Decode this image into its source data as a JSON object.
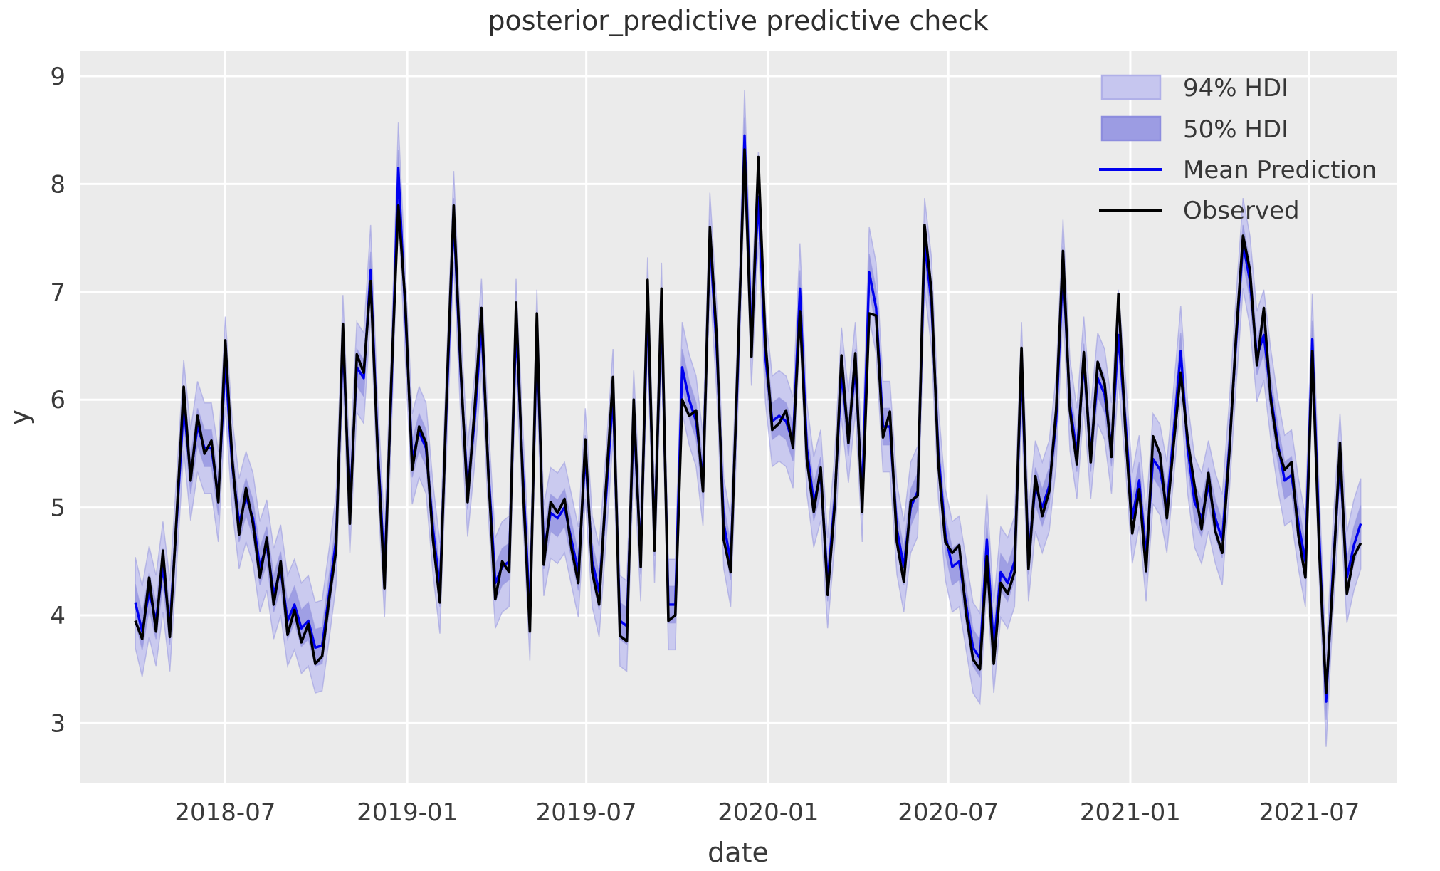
{
  "title": "posterior_predictive predictive check",
  "axes": {
    "xlabel": "date",
    "ylabel": "y",
    "yticks": [
      3,
      4,
      5,
      6,
      7,
      8,
      9
    ],
    "xticks": [
      "2018-07",
      "2019-01",
      "2019-07",
      "2020-01",
      "2020-07",
      "2021-01",
      "2021-07"
    ],
    "xtick_dates": [
      "2018-07-01",
      "2019-01-01",
      "2019-07-01",
      "2020-01-01",
      "2020-07-01",
      "2021-01-01",
      "2021-07-01"
    ]
  },
  "legend": {
    "items": [
      {
        "label": "94% HDI",
        "type": "patch",
        "fill": "#c6c6ef",
        "edge": "#adadе8"
      },
      {
        "label": "50% HDI",
        "type": "patch",
        "fill": "#9c9ce3",
        "edge": "#8a8adc"
      },
      {
        "label": "Mean Prediction",
        "type": "line",
        "color": "#0000ee"
      },
      {
        "label": "Observed",
        "type": "line",
        "color": "#000000"
      }
    ]
  },
  "colors": {
    "axes_background": "#ebebeb",
    "grid": "#ffffff",
    "hdi94_fill": "#c6c6ef",
    "hdi50_fill": "#9c9ce3",
    "band_edge": "#9898de",
    "mean_line": "#0000ee",
    "observed_line": "#000000",
    "text": "#3a3a3a"
  },
  "chart_data": {
    "type": "line",
    "title": "posterior_predictive predictive check",
    "xlabel": "date",
    "ylabel": "y",
    "ylim": [
      2.45,
      9.26
    ],
    "grid": true,
    "legend_position": "upper right",
    "x": {
      "start_date": "2018-04-01",
      "step_days": 7,
      "count": 178
    },
    "xtick_labels": [
      "2018-07",
      "2019-01",
      "2019-07",
      "2020-01",
      "2020-07",
      "2021-01",
      "2021-07"
    ],
    "ytick_values": [
      3,
      4,
      5,
      6,
      7,
      8,
      9
    ],
    "bands": [
      {
        "name": "94% HDI",
        "around": "Mean Prediction",
        "half_width": 0.42
      },
      {
        "name": "50% HDI",
        "around": "Mean Prediction",
        "half_width": 0.17
      }
    ],
    "series": [
      {
        "name": "Observed",
        "color": "#000000",
        "values": [
          3.95,
          3.78,
          4.35,
          3.85,
          4.6,
          3.8,
          4.95,
          6.12,
          5.25,
          5.85,
          5.5,
          5.62,
          5.05,
          6.55,
          5.45,
          4.75,
          5.18,
          4.85,
          4.35,
          4.72,
          4.1,
          4.5,
          3.82,
          4.05,
          3.75,
          3.92,
          3.55,
          3.62,
          4.15,
          4.6,
          6.7,
          4.85,
          6.42,
          6.25,
          7.1,
          5.55,
          4.25,
          6.2,
          7.8,
          6.9,
          5.35,
          5.75,
          5.6,
          4.7,
          4.12,
          6.1,
          7.8,
          6.3,
          5.05,
          5.9,
          6.85,
          5.3,
          4.15,
          4.5,
          4.4,
          6.9,
          5.2,
          3.85,
          6.8,
          4.47,
          5.05,
          4.95,
          5.08,
          4.62,
          4.3,
          5.63,
          4.4,
          4.1,
          5.2,
          6.21,
          3.81,
          3.76,
          6.0,
          4.45,
          7.11,
          4.6,
          7.03,
          3.95,
          4.0,
          6.0,
          5.85,
          5.9,
          5.15,
          7.6,
          6.55,
          4.7,
          4.4,
          6.3,
          8.32,
          6.4,
          8.25,
          6.55,
          5.72,
          5.78,
          5.9,
          5.55,
          6.82,
          5.45,
          4.96,
          5.37,
          4.19,
          5.0,
          6.41,
          5.6,
          6.43,
          4.96,
          6.8,
          6.78,
          5.65,
          5.89,
          4.68,
          4.31,
          5.06,
          5.11,
          7.62,
          7.0,
          5.4,
          4.68,
          4.58,
          4.65,
          4.02,
          3.59,
          3.5,
          4.55,
          3.55,
          4.3,
          4.2,
          4.4,
          6.48,
          4.43,
          5.29,
          4.92,
          5.15,
          5.9,
          7.38,
          5.9,
          5.4,
          6.44,
          5.42,
          6.35,
          6.15,
          5.47,
          6.98,
          5.71,
          4.76,
          5.17,
          4.41,
          5.66,
          5.5,
          4.9,
          5.6,
          6.25,
          5.63,
          5.2,
          4.8,
          5.32,
          4.78,
          4.58,
          5.5,
          6.6,
          7.52,
          7.2,
          6.32,
          6.85,
          6.0,
          5.55,
          5.35,
          5.42,
          4.74,
          4.35,
          6.45,
          4.6,
          3.28,
          4.35,
          5.6,
          4.2,
          4.55,
          4.67
        ]
      },
      {
        "name": "Mean Prediction",
        "color": "#0000ee",
        "values": [
          4.12,
          3.85,
          4.22,
          3.95,
          4.45,
          3.9,
          4.9,
          5.95,
          5.3,
          5.75,
          5.55,
          5.55,
          5.1,
          6.35,
          5.4,
          4.85,
          5.1,
          4.9,
          4.45,
          4.65,
          4.2,
          4.42,
          3.95,
          4.1,
          3.88,
          3.95,
          3.7,
          3.72,
          4.2,
          4.7,
          6.55,
          5.0,
          6.3,
          6.2,
          7.2,
          5.6,
          4.4,
          6.1,
          8.15,
          6.8,
          5.45,
          5.7,
          5.55,
          4.8,
          4.25,
          6.0,
          7.7,
          6.25,
          5.15,
          5.8,
          6.7,
          5.35,
          4.3,
          4.45,
          4.5,
          6.7,
          5.3,
          4.0,
          6.6,
          4.6,
          4.95,
          4.9,
          5.0,
          4.7,
          4.4,
          5.5,
          4.5,
          4.22,
          5.1,
          6.05,
          3.95,
          3.9,
          5.85,
          4.55,
          6.9,
          4.72,
          6.85,
          4.1,
          4.1,
          6.3,
          6.0,
          5.8,
          5.25,
          7.5,
          6.45,
          4.85,
          4.5,
          6.2,
          8.45,
          6.55,
          7.88,
          6.4,
          5.8,
          5.85,
          5.8,
          5.6,
          7.03,
          5.55,
          5.05,
          5.3,
          4.3,
          5.05,
          6.25,
          5.65,
          6.3,
          5.1,
          7.18,
          6.85,
          5.75,
          5.75,
          4.8,
          4.45,
          5.0,
          5.15,
          7.45,
          6.9,
          5.5,
          4.75,
          4.45,
          4.5,
          4.1,
          3.7,
          3.6,
          4.7,
          3.7,
          4.4,
          4.3,
          4.5,
          6.3,
          4.55,
          5.2,
          5.0,
          5.2,
          5.8,
          7.25,
          5.95,
          5.5,
          6.35,
          5.5,
          6.2,
          6.05,
          5.55,
          6.6,
          5.8,
          4.9,
          5.25,
          4.55,
          5.45,
          5.35,
          5.0,
          5.7,
          6.45,
          5.55,
          5.05,
          4.9,
          5.2,
          4.9,
          4.7,
          5.55,
          6.55,
          7.45,
          7.1,
          6.4,
          6.6,
          6.05,
          5.6,
          5.25,
          5.3,
          4.85,
          4.5,
          6.56,
          4.75,
          3.2,
          4.45,
          5.45,
          4.35,
          4.65,
          4.85
        ]
      }
    ]
  }
}
